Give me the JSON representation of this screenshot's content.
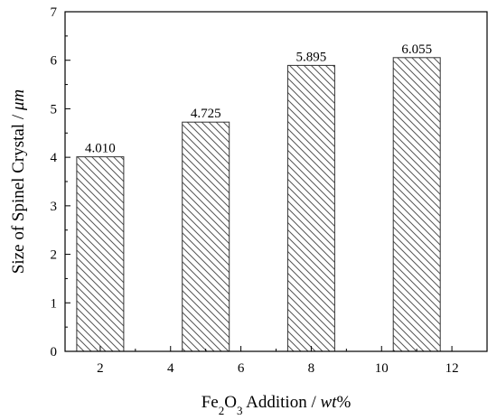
{
  "chart_data": {
    "type": "bar",
    "x": [
      2,
      5,
      8,
      11
    ],
    "values": [
      4.01,
      4.725,
      5.895,
      6.055
    ],
    "data_labels": [
      "4.010",
      "4.725",
      "5.895",
      "6.055"
    ],
    "xlabel": {
      "parts": [
        {
          "text": "Fe",
          "style": "normal"
        },
        {
          "text": "2",
          "style": "sub"
        },
        {
          "text": "O",
          "style": "normal"
        },
        {
          "text": "3",
          "style": "sub"
        },
        {
          "text": " Addition / ",
          "style": "normal"
        },
        {
          "text": "wt",
          "style": "italic"
        },
        {
          "text": "%",
          "style": "normal"
        }
      ]
    },
    "ylabel": {
      "parts": [
        {
          "text": "Size of Spinel Crystal / ",
          "style": "normal"
        },
        {
          "text": "μm",
          "style": "italic"
        }
      ]
    },
    "xlim": [
      1,
      13
    ],
    "ylim": [
      0,
      7
    ],
    "xticks": [
      2,
      4,
      6,
      8,
      10,
      12
    ],
    "xtick_labels": [
      "2",
      "4",
      "6",
      "8",
      "10",
      "12"
    ],
    "yticks": [
      0,
      1,
      2,
      3,
      4,
      5,
      6,
      7
    ],
    "ytick_labels": [
      "0",
      "1",
      "2",
      "3",
      "4",
      "5",
      "6",
      "7"
    ],
    "bar_fill": "diagonal-hatch",
    "grid": false,
    "legend": "none",
    "colors": {
      "bar_edge": "#333333",
      "hatch": "#555555",
      "axis": "#000000"
    }
  }
}
